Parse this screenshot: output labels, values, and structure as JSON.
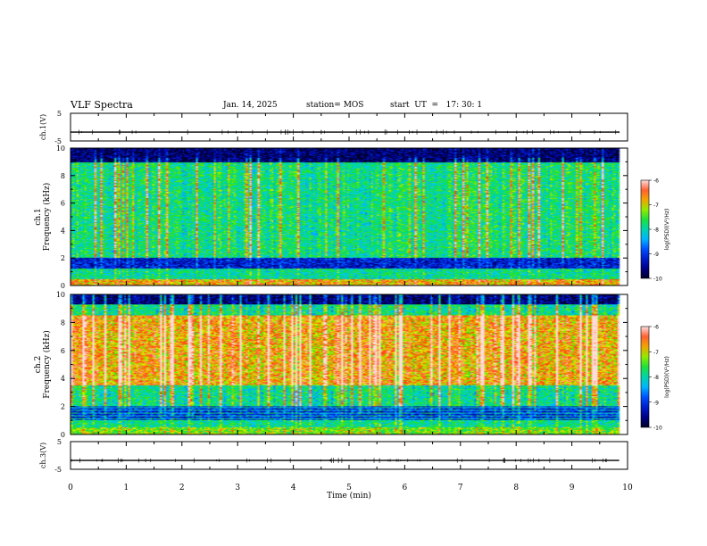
{
  "header": {
    "title": "VLF Spectra",
    "date": "Jan. 14, 2025",
    "station": "station= MOS",
    "start": "start  UT  =   17: 30: 1"
  },
  "chart_data": [
    {
      "type": "line",
      "panel": "ch1-waveform",
      "ylabel": "ch.1(V)",
      "ylim": [
        -5,
        5
      ],
      "yticklabels": [
        "5",
        "-5"
      ],
      "xlim": [
        0,
        10
      ],
      "series_level": -1.8
    },
    {
      "type": "heatmap",
      "panel": "ch1-spectrogram",
      "ylabel": "ch.1\nFrequency (kHz)",
      "ylim": [
        0,
        10
      ],
      "yticklabels": [
        "0",
        "2",
        "4",
        "6",
        "8",
        "10"
      ],
      "xlim": [
        0,
        9.85
      ],
      "zlabel": "log(PSD)(V²/Hz)",
      "zlim": [
        -10,
        -6
      ],
      "zticklabels": [
        "-6",
        "-7",
        "-8",
        "-9",
        "-10"
      ],
      "colormap": "rainbow (blue low, red high)",
      "bands_kHz": [
        {
          "range": [
            0,
            0.4
          ],
          "level": "high"
        },
        {
          "range": [
            0.4,
            1.2
          ],
          "level": "medium"
        },
        {
          "range": [
            1.2,
            2.0
          ],
          "level": "low"
        },
        {
          "range": [
            2.0,
            9.0
          ],
          "level": "medium-high with vertical bursts"
        },
        {
          "range": [
            9.0,
            10
          ],
          "level": "very low"
        }
      ]
    },
    {
      "type": "heatmap",
      "panel": "ch2-spectrogram",
      "ylabel": "ch.2\nFrequency (kHz)",
      "ylim": [
        0,
        10
      ],
      "yticklabels": [
        "0",
        "2",
        "4",
        "6",
        "8",
        "10"
      ],
      "xlim": [
        0,
        9.85
      ],
      "zlabel": "log(PSD)(V²/Hz)",
      "zlim": [
        -10,
        -6
      ],
      "zticklabels": [
        "-6",
        "-7",
        "-8",
        "-9",
        "-10"
      ],
      "colormap": "rainbow (blue low, red high)",
      "bands_kHz": [
        {
          "range": [
            0,
            0.5
          ],
          "level": "medium-high"
        },
        {
          "range": [
            0.5,
            1.0
          ],
          "level": "medium"
        },
        {
          "range": [
            1.0,
            2.0
          ],
          "level": "low with horizontal lines"
        },
        {
          "range": [
            2.0,
            3.5
          ],
          "level": "medium"
        },
        {
          "range": [
            3.5,
            8.5
          ],
          "level": "high"
        },
        {
          "range": [
            8.5,
            9.3
          ],
          "level": "medium"
        },
        {
          "range": [
            9.3,
            10
          ],
          "level": "very low"
        }
      ]
    },
    {
      "type": "line",
      "panel": "ch3-waveform",
      "ylabel": "ch.3(V)",
      "ylim": [
        -5,
        5
      ],
      "yticklabels": [
        "5",
        "-5"
      ],
      "xlim": [
        0,
        10
      ],
      "series_level": -1.8
    }
  ],
  "xaxis": {
    "label": "Time (min)",
    "ticks": [
      0,
      1,
      2,
      3,
      4,
      5,
      6,
      7,
      8,
      9,
      10
    ],
    "ticklabels": [
      "0",
      "1",
      "2",
      "3",
      "4",
      "5",
      "6",
      "7",
      "8",
      "9",
      "10"
    ]
  }
}
